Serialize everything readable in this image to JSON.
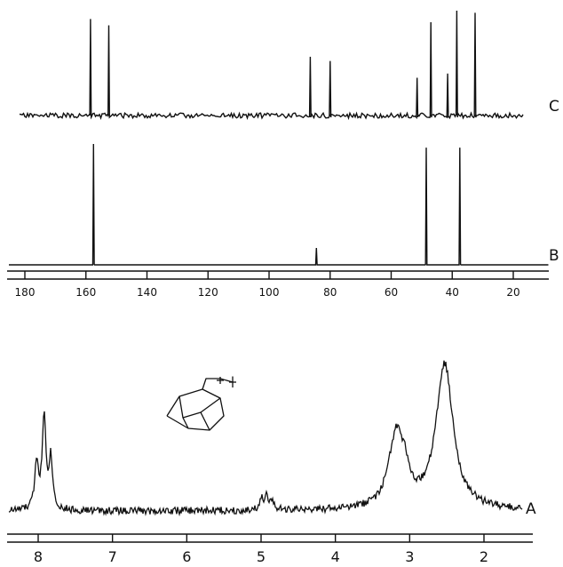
{
  "figure": {
    "background": "#ffffff",
    "ink": "#111111"
  },
  "chart_data": [
    {
      "type": "line",
      "trace_label": "C",
      "xlim": [
        190,
        10
      ],
      "shares_axis_with": "B",
      "peaks": [
        {
          "x": 158.5,
          "height": 0.92
        },
        {
          "x": 152.5,
          "height": 0.86
        },
        {
          "x": 86.5,
          "height": 0.56
        },
        {
          "x": 80.0,
          "height": 0.52
        },
        {
          "x": 51.5,
          "height": 0.36
        },
        {
          "x": 47.0,
          "height": 0.89
        },
        {
          "x": 41.5,
          "height": 0.4
        },
        {
          "x": 38.5,
          "height": 1.0
        },
        {
          "x": 32.5,
          "height": 0.98
        }
      ],
      "noise": 0.04
    },
    {
      "type": "line",
      "trace_label": "B",
      "xlim": [
        190,
        10
      ],
      "x_ticks": [
        180,
        160,
        140,
        120,
        100,
        80,
        60,
        40,
        20
      ],
      "peaks": [
        {
          "x": 157.5,
          "height": 1.0
        },
        {
          "x": 84.5,
          "height": 0.14
        },
        {
          "x": 48.5,
          "height": 0.97
        },
        {
          "x": 37.5,
          "height": 0.97
        }
      ],
      "noise": 0.0
    },
    {
      "type": "line",
      "trace_label": "A",
      "xlim": [
        8.3,
        1.5
      ],
      "x_ticks": [
        8,
        7,
        6,
        5,
        4,
        3,
        2
      ],
      "peaks": [
        {
          "x": 8.02,
          "width": 0.03,
          "height": 0.32
        },
        {
          "x": 7.92,
          "width": 0.03,
          "height": 0.62
        },
        {
          "x": 7.83,
          "width": 0.03,
          "height": 0.33
        },
        {
          "x": 5.0,
          "width": 0.03,
          "height": 0.07
        },
        {
          "x": 4.93,
          "width": 0.03,
          "height": 0.1
        },
        {
          "x": 4.86,
          "width": 0.03,
          "height": 0.05
        },
        {
          "x": 3.18,
          "width": 0.12,
          "height": 0.5
        },
        {
          "x": 3.06,
          "width": 0.06,
          "height": 0.12
        },
        {
          "x": 2.53,
          "width": 0.14,
          "height": 0.97
        }
      ],
      "noise": 0.025
    }
  ]
}
